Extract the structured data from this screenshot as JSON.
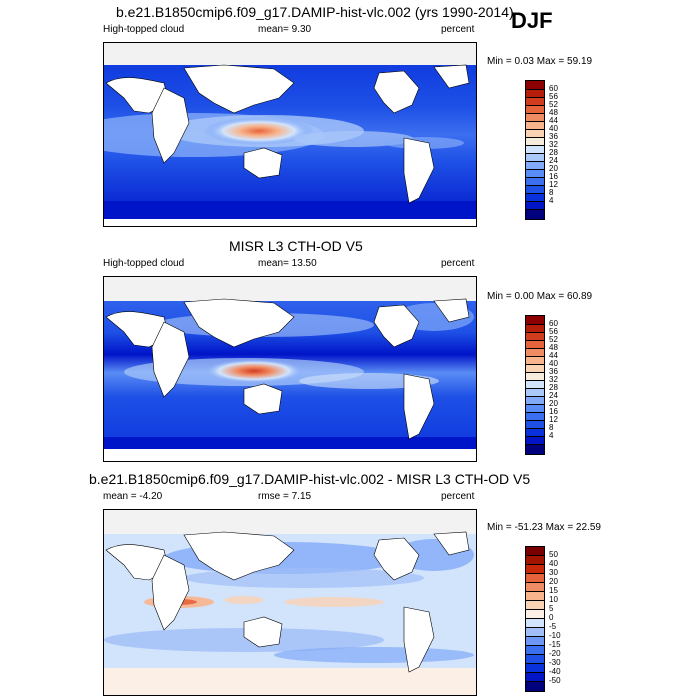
{
  "season": "DJF",
  "panels": [
    {
      "title": "b.e21.B1850cmip6.f09_g17.DAMIP-hist-vlc.002 (yrs 1990-2014)",
      "left_label": "High-topped cloud",
      "center_label": "mean=  9.30",
      "right_label": "percent",
      "minmax": "Min =  0.03 Max =  59.19"
    },
    {
      "title": "MISR L3 CTH-OD V5",
      "left_label": "High-topped cloud",
      "center_label": "mean=  13.50",
      "right_label": "percent",
      "minmax": "Min =  0.00 Max =  60.89"
    },
    {
      "title": "b.e21.B1850cmip6.f09_g17.DAMIP-hist-vlc.002 - MISR L3 CTH-OD V5",
      "left_label": "mean =  -4.20",
      "center_label": "rmse =   7.15",
      "right_label": "percent",
      "minmax": "Min = -51.23 Max =  22.59"
    }
  ],
  "chart_data": [
    {
      "type": "heatmap",
      "title": "b.e21.B1850cmip6.f09_g17.DAMIP-hist-vlc.002 (yrs 1990-2014)",
      "variable": "High-topped cloud",
      "units": "percent",
      "mean": 9.3,
      "min": 0.03,
      "max": 59.19,
      "colorbar_levels": [
        4,
        8,
        12,
        16,
        20,
        24,
        28,
        32,
        36,
        40,
        44,
        48,
        52,
        56,
        60
      ],
      "colorbar_labels": [
        "60",
        "56",
        "52",
        "48",
        "44",
        "40",
        "36",
        "32",
        "28",
        "24",
        "20",
        "16",
        "12",
        "8",
        "4"
      ],
      "colors": [
        "#00007f",
        "#0014c8",
        "#0a32dc",
        "#1e50e6",
        "#3c6ef0",
        "#5a8cf5",
        "#82aaf8",
        "#aac8fa",
        "#d2e4fc",
        "#f5ecdc",
        "#fad2b4",
        "#f8b48c",
        "#f08c64",
        "#e6643c",
        "#d23c1e",
        "#b41e0a",
        "#8c0000"
      ]
    },
    {
      "type": "heatmap",
      "title": "MISR L3 CTH-OD V5",
      "variable": "High-topped cloud",
      "units": "percent",
      "mean": 13.5,
      "min": 0.0,
      "max": 60.89,
      "colorbar_levels": [
        4,
        8,
        12,
        16,
        20,
        24,
        28,
        32,
        36,
        40,
        44,
        48,
        52,
        56,
        60
      ],
      "colorbar_labels": [
        "60",
        "56",
        "52",
        "48",
        "44",
        "40",
        "36",
        "32",
        "28",
        "24",
        "20",
        "16",
        "12",
        "8",
        "4"
      ],
      "colors": [
        "#00007f",
        "#0014c8",
        "#0a32dc",
        "#1e50e6",
        "#3c6ef0",
        "#5a8cf5",
        "#82aaf8",
        "#aac8fa",
        "#d2e4fc",
        "#f5ecdc",
        "#fad2b4",
        "#f8b48c",
        "#f08c64",
        "#e6643c",
        "#d23c1e",
        "#b41e0a",
        "#8c0000"
      ]
    },
    {
      "type": "heatmap",
      "title": "b.e21.B1850cmip6.f09_g17.DAMIP-hist-vlc.002 - MISR L3 CTH-OD V5",
      "units": "percent",
      "mean": -4.2,
      "rmse": 7.15,
      "min": -51.23,
      "max": 22.59,
      "colorbar_levels": [
        -50,
        -40,
        -30,
        -20,
        -15,
        -10,
        -5,
        0,
        5,
        10,
        15,
        20,
        30,
        40,
        50
      ],
      "colorbar_labels": [
        "50",
        "40",
        "30",
        "20",
        "15",
        "10",
        "5",
        "0",
        "-5",
        "-10",
        "-15",
        "-20",
        "-30",
        "-40",
        "-50"
      ],
      "colors": [
        "#00007f",
        "#0014c8",
        "#0a32dc",
        "#1e50e6",
        "#3c6ef0",
        "#6e96f5",
        "#a0bef8",
        "#d2e4fc",
        "#fcf0e6",
        "#fad2b4",
        "#f8b48c",
        "#f08c64",
        "#e6643c",
        "#c8280a",
        "#a01400",
        "#780000"
      ]
    }
  ]
}
